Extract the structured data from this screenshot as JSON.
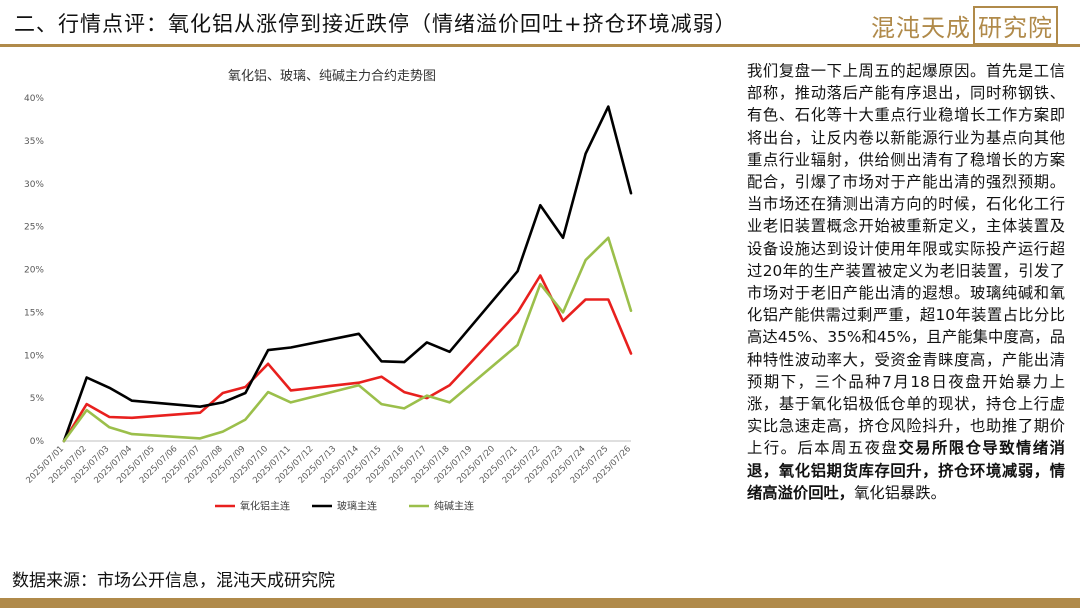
{
  "header": {
    "title": "二、行情点评：氧化铝从涨停到接近跌停（情绪溢价回吐+挤仓环境减弱）",
    "logo_text": "混沌天成",
    "logo_boxed": "研究院"
  },
  "colors": {
    "accent": "#b08a4a",
    "series1": "#e8201e",
    "series2": "#000000",
    "series3": "#9bbf4b"
  },
  "chart_data": {
    "type": "line",
    "title": "氧化铝、玻璃、纯碱主力合约走势图",
    "ylim": [
      0,
      40
    ],
    "yticks": [
      0,
      5,
      10,
      15,
      20,
      25,
      30,
      35,
      40
    ],
    "ytick_labels": [
      "0%",
      "5%",
      "10%",
      "15%",
      "20%",
      "25%",
      "30%",
      "35%",
      "40%"
    ],
    "grid": false,
    "legend_position": "bottom",
    "x": [
      "2025/07/01",
      "2025/07/02",
      "2025/07/03",
      "2025/07/04",
      "2025/07/05",
      "2025/07/06",
      "2025/07/07",
      "2025/07/08",
      "2025/07/09",
      "2025/07/10",
      "2025/07/11",
      "2025/07/12",
      "2025/07/13",
      "2025/07/14",
      "2025/07/15",
      "2025/07/16",
      "2025/07/17",
      "2025/07/18",
      "2025/07/19",
      "2025/07/20",
      "2025/07/21",
      "2025/07/22",
      "2025/07/23",
      "2025/07/24",
      "2025/07/25",
      "2025/07/26"
    ],
    "series": [
      {
        "name": "氧化铝主连",
        "color": "#e8201e",
        "values": [
          0,
          4.3,
          2.8,
          2.7,
          null,
          null,
          3.3,
          5.6,
          6.3,
          9.0,
          5.9,
          null,
          null,
          6.8,
          7.5,
          5.7,
          5.0,
          6.5,
          null,
          null,
          15.0,
          19.3,
          14.0,
          16.5,
          16.5,
          10.2
        ]
      },
      {
        "name": "玻璃主连",
        "color": "#000000",
        "values": [
          0,
          7.4,
          6.2,
          4.7,
          null,
          null,
          4.0,
          4.5,
          5.6,
          10.6,
          10.9,
          null,
          null,
          12.5,
          9.3,
          9.2,
          11.5,
          10.4,
          null,
          null,
          19.8,
          27.5,
          23.7,
          33.5,
          39.0,
          28.9
        ]
      },
      {
        "name": "纯碱主连",
        "color": "#9bbf4b",
        "values": [
          0,
          3.6,
          1.6,
          0.8,
          null,
          null,
          0.3,
          1.1,
          2.5,
          5.7,
          4.5,
          null,
          null,
          6.5,
          4.3,
          3.8,
          5.3,
          4.5,
          null,
          null,
          11.2,
          18.3,
          15.0,
          21.1,
          23.7,
          15.2
        ]
      }
    ]
  },
  "commentary": {
    "normal": "我们复盘一下上周五的起爆原因。首先是工信部称，推动落后产能有序退出，同时称钢铁、有色、石化等十大重点行业稳增长工作方案即将出台，让反内卷以新能源行业为基点向其他重点行业辐射，供给侧出清有了稳增长的方案配合，引爆了市场对于产能出清的强烈预期。当市场还在猜测出清方向的时候，石化化工行业老旧装置概念开始被重新定义，主体装置及设备设施达到设计使用年限或实际投产运行超过20年的生产装置被定义为老旧装置，引发了市场对于老旧产能出清的遐想。玻璃纯碱和氧化铝产能供需过剩严重，超10年装置占比分比高达45%、35%和45%，且产能集中度高，品种特性波动率大，受资金青睐度高，产能出清预期下，三个品种7月18日夜盘开始暴力上涨，基于氧化铝极低仓单的现状，持仓上行虚实比急速走高，挤仓风险抖升，也助推了期价上行。后本周五夜盘",
    "bold": "交易所限仓导致情绪消退，氧化铝期货库存回升，挤仓环境减弱，情绪高溢价回吐，",
    "tail": "氧化铝暴跌。"
  },
  "source": "数据来源：市场公开信息，混沌天成研究院"
}
